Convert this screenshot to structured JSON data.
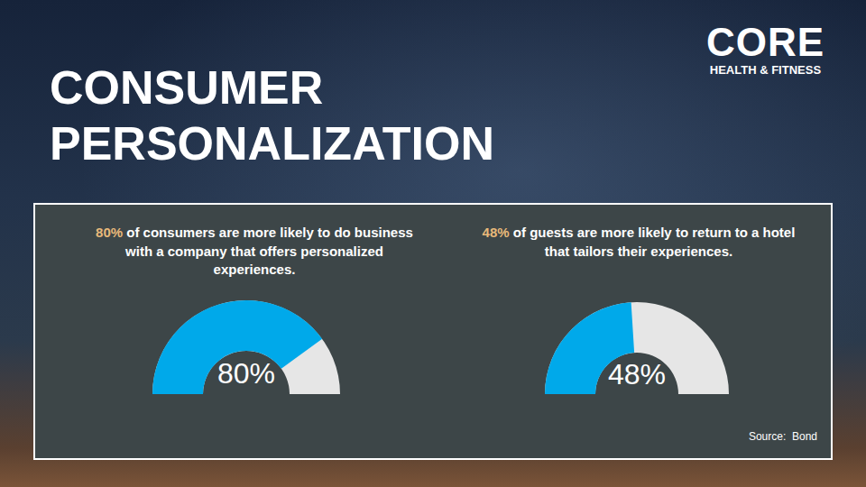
{
  "title": "CONSUMER PERSONALIZATION",
  "logo": {
    "name": "CORE",
    "tagline": "HEALTH & FITNESS"
  },
  "chart_data": [
    {
      "type": "gauge",
      "title": "80% of consumers are more likely to do business with a company that offers personalized experiences.",
      "values": [
        80
      ],
      "value_labels": [
        "80%"
      ],
      "ylim": [
        0,
        100
      ],
      "color": "#00a9ea",
      "tick_labels": false
    },
    {
      "type": "gauge",
      "title": "48% of guests are more likely to return to a hotel that tailors their experiences.",
      "values": [
        48
      ],
      "value_labels": [
        "48%"
      ],
      "ylim": [
        0,
        100
      ],
      "color": "#00a9ea",
      "tick_labels": false
    }
  ],
  "source": "Source:  Bond"
}
